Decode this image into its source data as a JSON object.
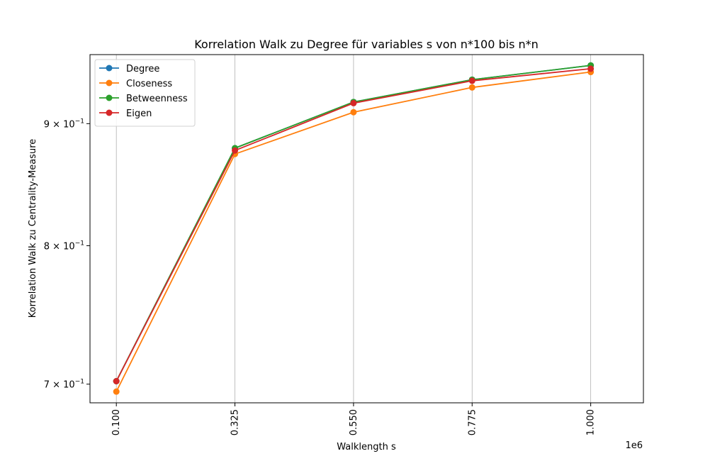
{
  "chart_data": {
    "type": "line",
    "title": "Korrelation Walk zu Degree für variables s von n*100 bis n*n",
    "xlabel": "Walklength s",
    "ylabel": "Korrelation Walk zu Centrality-Measure",
    "x_offset_label": "1e6",
    "x": [
      100000,
      325000,
      550000,
      775000,
      1000000
    ],
    "x_tick_labels": [
      "0.100",
      "0.325",
      "0.550",
      "0.775",
      "1.000"
    ],
    "x_tick_rotation": 90,
    "xlim": [
      50000,
      1100000
    ],
    "y_scale": "log",
    "ylim": [
      0.6875,
      0.962
    ],
    "y_ticks": [
      {
        "value": 0.7,
        "base": "7 × 10",
        "exp": "−1"
      },
      {
        "value": 0.8,
        "base": "8 × 10",
        "exp": "−1"
      },
      {
        "value": 0.9,
        "base": "9 × 10",
        "exp": "−1"
      }
    ],
    "grid": "x",
    "legend_position": "top-left",
    "series": [
      {
        "name": "Degree",
        "color": "#1f77b4",
        "marker": "circle",
        "values": [
          0.702,
          0.879,
          0.919,
          0.939,
          0.952
        ]
      },
      {
        "name": "Closeness",
        "color": "#ff7f0e",
        "marker": "circle",
        "values": [
          0.695,
          0.874,
          0.91,
          0.932,
          0.946
        ]
      },
      {
        "name": "Betweenness",
        "color": "#2ca02c",
        "marker": "circle",
        "values": [
          0.702,
          0.879,
          0.919,
          0.939,
          0.952
        ]
      },
      {
        "name": "Eigen",
        "color": "#d62728",
        "marker": "circle",
        "values": [
          0.702,
          0.877,
          0.918,
          0.938,
          0.949
        ]
      }
    ]
  }
}
